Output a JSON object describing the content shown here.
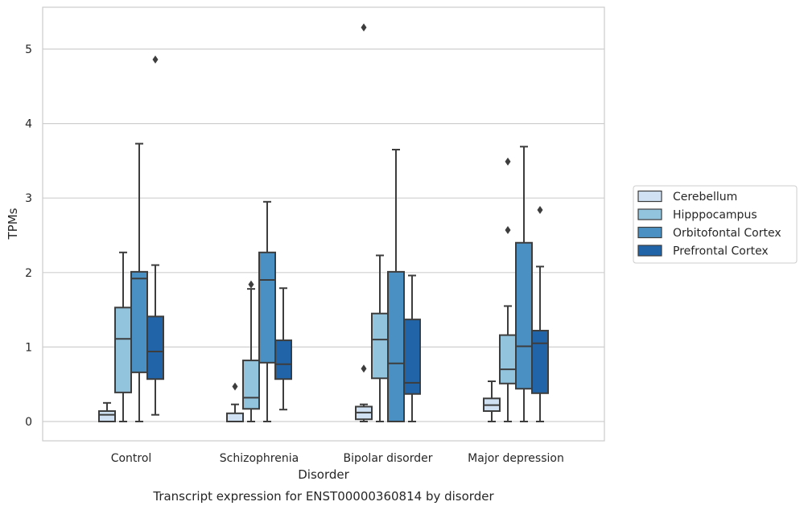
{
  "chart_data": {
    "type": "box",
    "title": "Transcript expression for ENST00000360814 by disorder",
    "xlabel": "Disorder",
    "ylabel": "TPMs",
    "ylim": [
      -0.25,
      5.55
    ],
    "yticks": [
      0,
      1,
      2,
      3,
      4,
      5
    ],
    "grid": true,
    "legend_position": "right",
    "categories": [
      "Control",
      "Schizophrenia",
      "Bipolar disorder",
      "Major depression"
    ],
    "series": [
      {
        "name": "Cerebellum",
        "color": "#cfe1f2",
        "boxes": [
          {
            "whislo": 0.0,
            "q1": 0.0,
            "med": 0.09,
            "q3": 0.14,
            "whishi": 0.25,
            "fliers": []
          },
          {
            "whislo": 0.0,
            "q1": 0.0,
            "med": 0.0,
            "q3": 0.11,
            "whishi": 0.23,
            "fliers": [
              0.47
            ]
          },
          {
            "whislo": 0.0,
            "q1": 0.03,
            "med": 0.12,
            "q3": 0.2,
            "whishi": 0.23,
            "fliers": [
              0.71,
              5.29
            ]
          },
          {
            "whislo": 0.0,
            "q1": 0.14,
            "med": 0.22,
            "q3": 0.31,
            "whishi": 0.54,
            "fliers": []
          }
        ]
      },
      {
        "name": "Hipppocampus",
        "color": "#93c4de",
        "boxes": [
          {
            "whislo": 0.0,
            "q1": 0.39,
            "med": 1.11,
            "q3": 1.53,
            "whishi": 2.27,
            "fliers": []
          },
          {
            "whislo": 0.0,
            "q1": 0.17,
            "med": 0.32,
            "q3": 0.82,
            "whishi": 1.78,
            "fliers": [
              1.84
            ]
          },
          {
            "whislo": 0.0,
            "q1": 0.58,
            "med": 1.1,
            "q3": 1.45,
            "whishi": 2.23,
            "fliers": []
          },
          {
            "whislo": 0.0,
            "q1": 0.51,
            "med": 0.7,
            "q3": 1.16,
            "whishi": 1.55,
            "fliers": [
              2.57,
              3.49
            ]
          }
        ]
      },
      {
        "name": "Orbitofontal Cortex",
        "color": "#4a90c2",
        "boxes": [
          {
            "whislo": 0.0,
            "q1": 0.66,
            "med": 1.92,
            "q3": 2.01,
            "whishi": 3.73,
            "fliers": []
          },
          {
            "whislo": 0.0,
            "q1": 0.79,
            "med": 1.9,
            "q3": 2.27,
            "whishi": 2.95,
            "fliers": []
          },
          {
            "whislo": 0.0,
            "q1": 0.0,
            "med": 0.78,
            "q3": 2.01,
            "whishi": 3.65,
            "fliers": []
          },
          {
            "whislo": 0.0,
            "q1": 0.44,
            "med": 1.01,
            "q3": 2.4,
            "whishi": 3.69,
            "fliers": []
          }
        ]
      },
      {
        "name": "Prefrontal Cortex",
        "color": "#2165a8",
        "boxes": [
          {
            "whislo": 0.09,
            "q1": 0.57,
            "med": 0.94,
            "q3": 1.41,
            "whishi": 2.1,
            "fliers": [
              4.86
            ]
          },
          {
            "whislo": 0.16,
            "q1": 0.57,
            "med": 0.77,
            "q3": 1.09,
            "whishi": 1.79,
            "fliers": []
          },
          {
            "whislo": 0.0,
            "q1": 0.37,
            "med": 0.52,
            "q3": 1.37,
            "whishi": 1.96,
            "fliers": []
          },
          {
            "whislo": 0.0,
            "q1": 0.38,
            "med": 1.05,
            "q3": 1.22,
            "whishi": 2.08,
            "fliers": [
              2.84
            ]
          }
        ]
      }
    ]
  }
}
